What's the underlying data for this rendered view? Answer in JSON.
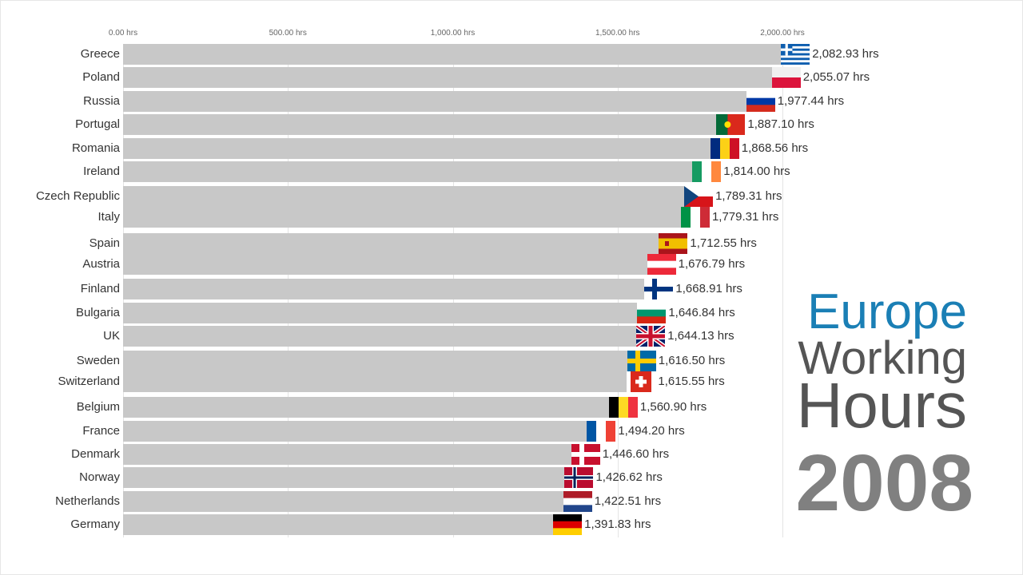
{
  "chart_data": {
    "type": "bar",
    "orientation": "horizontal",
    "title": "Europe Working Hours",
    "title_lines": [
      "Europe",
      "Working",
      "Hours"
    ],
    "year": "2008",
    "unit_suffix": " hrs",
    "xlim": [
      0,
      2100
    ],
    "xticks": [
      0,
      500,
      1000,
      1500,
      2000
    ],
    "xtick_labels": [
      "0.00 hrs",
      "500.00 hrs",
      "1,000.00 hrs",
      "1,500.00 hrs",
      "2,000.00 hrs"
    ],
    "grid": true,
    "categories": [
      "Greece",
      "Poland",
      "Russia",
      "Portugal",
      "Romania",
      "Ireland",
      "Czech Republic",
      "Italy",
      "Spain",
      "Austria",
      "Finland",
      "Bulgaria",
      "UK",
      "Sweden",
      "Switzerland",
      "Belgium",
      "France",
      "Denmark",
      "Norway",
      "Netherlands",
      "Germany"
    ],
    "values": [
      2082.93,
      2055.07,
      1977.44,
      1887.1,
      1868.56,
      1814.0,
      1789.31,
      1779.31,
      1712.55,
      1676.79,
      1668.91,
      1646.84,
      1644.13,
      1616.5,
      1615.55,
      1560.9,
      1494.2,
      1446.6,
      1426.62,
      1422.51,
      1391.83
    ],
    "value_labels": [
      "2,082.93 hrs",
      "2,055.07 hrs",
      "1,977.44 hrs",
      "1,887.10 hrs",
      "1,868.56 hrs",
      "1,814.00 hrs",
      "1,789.31 hrs",
      "1,779.31 hrs",
      "1,712.55 hrs",
      "1,676.79 hrs",
      "1,668.91 hrs",
      "1,646.84 hrs",
      "1,644.13 hrs",
      "1,616.50 hrs",
      "1,615.55 hrs",
      "1,560.90 hrs",
      "1,494.20 hrs",
      "1,446.60 hrs",
      "1,426.62 hrs",
      "1,422.51 hrs",
      "1,391.83 hrs"
    ],
    "flags": [
      "gr",
      "pl",
      "ru",
      "pt",
      "ro",
      "ie",
      "cz",
      "it",
      "es",
      "at",
      "fi",
      "bg",
      "gb",
      "se",
      "ch",
      "be",
      "fr",
      "dk",
      "no",
      "nl",
      "de"
    ]
  },
  "colors": {
    "bar": "#c8c8c8",
    "title_accent": "#1a7fb5",
    "title_gray": "#555555",
    "year": "#808080"
  }
}
